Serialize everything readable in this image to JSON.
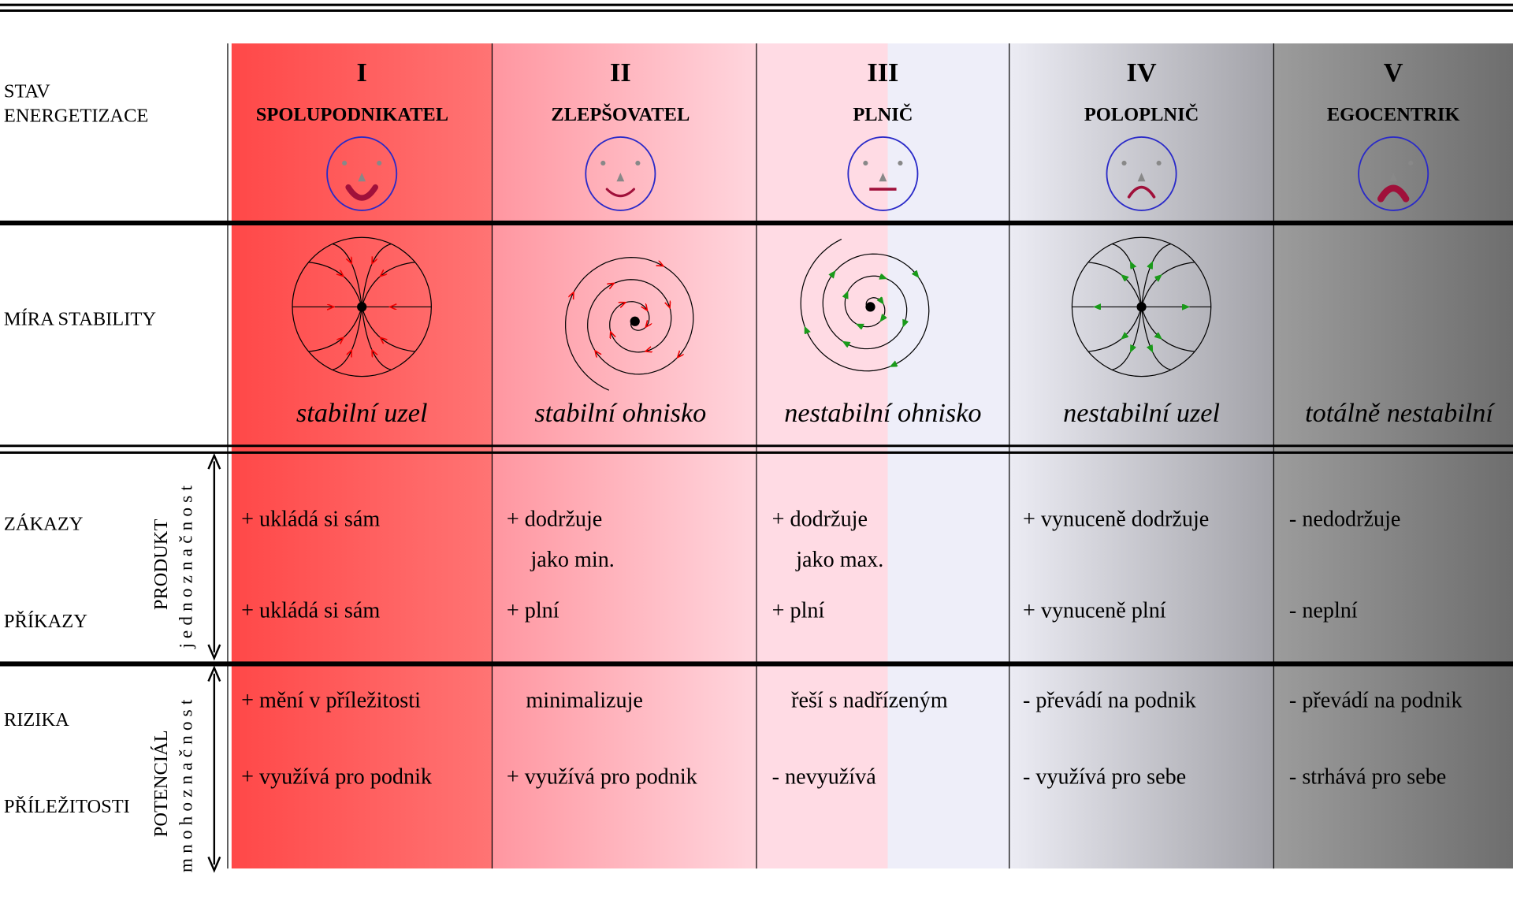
{
  "row_labels": {
    "state": [
      "STAV",
      "ENERGETIZACE"
    ],
    "stability": "MÍRA STABILITY",
    "zakazy": "ZÁKAZY",
    "prikazy": "PŘÍKAZY",
    "rizika": "RIZIKA",
    "prilezitosti": "PŘÍLEŽITOSTI"
  },
  "groups": [
    {
      "title": "PRODUKT",
      "subtitle": "jednoznačnost"
    },
    {
      "title": "POTENCIÁL",
      "subtitle": "mnohoznačnost"
    }
  ],
  "columns": [
    {
      "numeral": "I",
      "name": "SPOLUPODNIKATEL",
      "stability": "stabilní uzel",
      "zakazy": [
        "+ ukládá si sám"
      ],
      "prikazy": "+ ukládá si sám",
      "rizika": "+ mění v příležitosti",
      "prilezitosti": "+ využívá pro podnik"
    },
    {
      "numeral": "II",
      "name": "ZLEPŠOVATEL",
      "stability": "stabilní ohnisko",
      "zakazy": [
        "+ dodržuje",
        "jako min."
      ],
      "prikazy": "+ plní",
      "rizika": "minimalizuje",
      "prilezitosti": "+ využívá pro podnik"
    },
    {
      "numeral": "III",
      "name": "PLNIČ",
      "stability": "nestabilní ohnisko",
      "zakazy": [
        "+ dodržuje",
        "jako max."
      ],
      "prikazy": "+ plní",
      "rizika": "řeší s nadřízeným",
      "prilezitosti": "- nevyužívá"
    },
    {
      "numeral": "IV",
      "name": "POLOPLNIČ",
      "stability": "nestabilní uzel",
      "zakazy": [
        "+ vynuceně dodržuje"
      ],
      "prikazy": "+ vynuceně plní",
      "rizika": "- převádí na podnik",
      "prilezitosti": "- využívá pro sebe"
    },
    {
      "numeral": "V",
      "name": "EGOCENTRIK",
      "stability": "totálně nestabilní",
      "zakazy": [
        "- nedodržuje"
      ],
      "prikazy": "- neplní",
      "rizika": "- převádí na podnik",
      "prilezitosti": "- strhává pro sebe"
    }
  ]
}
